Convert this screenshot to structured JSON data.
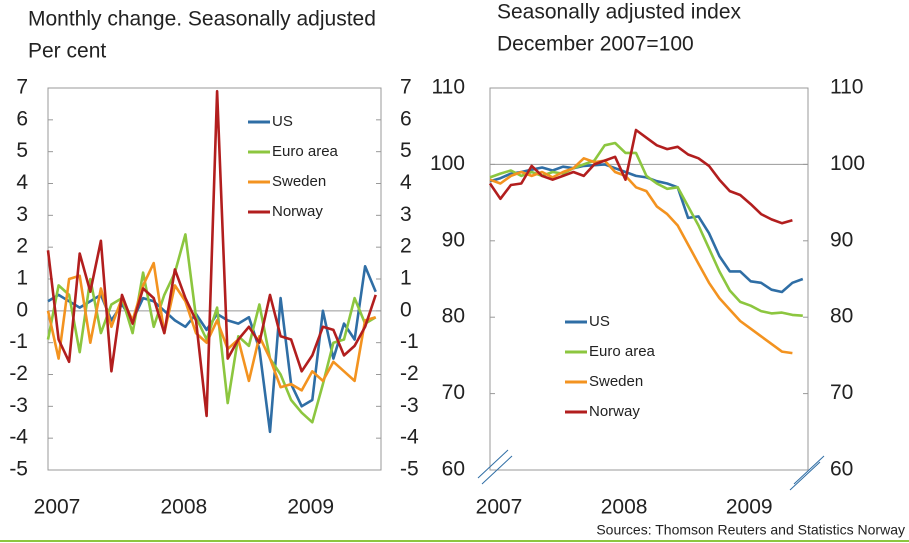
{
  "chart_data": [
    {
      "type": "line",
      "title": "Monthly change. Seasonally adjusted",
      "subtitle": "Per cent",
      "categories": [
        "2007",
        null,
        null,
        null,
        null,
        null,
        null,
        null,
        null,
        null,
        null,
        null,
        "2008",
        null,
        null,
        null,
        null,
        null,
        null,
        null,
        null,
        null,
        null,
        null,
        "2009",
        null,
        null,
        null,
        null,
        null,
        null,
        null
      ],
      "series": [
        {
          "name": "US",
          "color": "#2f6ea5",
          "values": [
            0.3,
            0.5,
            0.3,
            0.1,
            0.3,
            0.5,
            -0.3,
            0.2,
            -0.3,
            0.4,
            0.3,
            0.0,
            -0.3,
            -0.5,
            -0.1,
            -0.6,
            -0.1,
            -0.3,
            -0.4,
            -0.2,
            -1.2,
            -3.8,
            0.4,
            -2.3,
            -3.0,
            -2.8,
            0.0,
            -1.5,
            -0.4,
            -0.9,
            1.4,
            0.6
          ]
        },
        {
          "name": "Euro area",
          "color": "#8cc63f",
          "values": [
            -0.9,
            0.8,
            0.5,
            -1.3,
            1.0,
            -0.7,
            0.2,
            0.4,
            -0.7,
            1.2,
            -0.5,
            0.5,
            1.2,
            2.4,
            -0.2,
            -0.9,
            0.1,
            -2.9,
            -0.8,
            -1.1,
            0.2,
            -1.5,
            -2.0,
            -2.8,
            -3.2,
            -3.5,
            -2.3,
            -1.0,
            -0.9,
            0.4,
            -0.4,
            -0.2
          ]
        },
        {
          "name": "Sweden",
          "color": "#f39320",
          "values": [
            0.0,
            -1.5,
            1.0,
            1.1,
            -1.0,
            0.7,
            -0.5,
            0.4,
            -0.3,
            0.8,
            1.5,
            -0.7,
            0.8,
            0.3,
            -0.7,
            -1.0,
            -0.3,
            -1.2,
            -0.9,
            -2.2,
            -0.8,
            -1.5,
            -2.4,
            -2.3,
            -2.5,
            -1.9,
            -2.2,
            -1.6,
            -1.9,
            -2.2,
            -0.3,
            -0.2
          ]
        },
        {
          "name": "Norway",
          "color": "#b21e1e",
          "values": [
            1.9,
            -0.9,
            -1.6,
            1.8,
            0.6,
            2.2,
            -1.9,
            0.5,
            -0.4,
            0.7,
            0.4,
            -0.7,
            1.3,
            0.4,
            -0.3,
            -3.3,
            6.9,
            -1.5,
            -0.9,
            -0.5,
            -1.0,
            0.5,
            -0.8,
            -0.9,
            -1.9,
            -1.4,
            -0.5,
            -0.6,
            -1.4,
            -1.1,
            -0.5,
            0.5
          ]
        }
      ],
      "ylim": [
        -5,
        7
      ],
      "yticks": [
        -5,
        -4,
        -3,
        -2,
        -1,
        0,
        1,
        2,
        3,
        4,
        5,
        6,
        7
      ],
      "reference_line": 0,
      "legend": "upper right"
    },
    {
      "type": "line",
      "title": "Seasonally adjusted index",
      "subtitle": "December 2007=100",
      "categories": [
        "2007",
        null,
        null,
        null,
        null,
        null,
        null,
        null,
        null,
        null,
        null,
        null,
        "2008",
        null,
        null,
        null,
        null,
        null,
        null,
        null,
        null,
        null,
        null,
        null,
        "2009",
        null,
        null,
        null,
        null,
        null,
        null
      ],
      "series": [
        {
          "name": "US",
          "color": "#2f6ea5",
          "values": [
            97.8,
            98.2,
            98.8,
            99.0,
            99.3,
            99.6,
            99.2,
            99.7,
            99.5,
            99.8,
            99.9,
            100.0,
            99.5,
            99.0,
            98.5,
            98.3,
            97.8,
            97.5,
            97.0,
            93.0,
            93.2,
            91.0,
            88.0,
            86.0,
            86.0,
            84.7,
            84.5,
            83.6,
            83.3,
            84.5,
            85.0
          ]
        },
        {
          "name": "Euro area",
          "color": "#8cc63f",
          "values": [
            98.3,
            98.8,
            99.2,
            98.5,
            99.0,
            98.5,
            99.0,
            98.8,
            99.5,
            100.0,
            100.5,
            102.5,
            102.8,
            101.5,
            101.5,
            98.5,
            97.5,
            96.8,
            97.0,
            94.5,
            92.0,
            89.0,
            86.0,
            83.5,
            82.0,
            81.5,
            80.8,
            80.5,
            80.6,
            80.3,
            80.2
          ]
        },
        {
          "name": "Sweden",
          "color": "#f39320",
          "values": [
            98.0,
            97.5,
            98.5,
            99.0,
            98.5,
            99.0,
            98.3,
            99.0,
            99.5,
            100.8,
            100.3,
            100.5,
            99.0,
            98.5,
            97.0,
            96.5,
            94.5,
            93.5,
            92.0,
            89.5,
            87.0,
            84.5,
            82.5,
            81.0,
            79.5,
            78.5,
            77.5,
            76.5,
            75.5,
            75.3,
            null
          ]
        },
        {
          "name": "Norway",
          "color": "#b21e1e",
          "values": [
            97.5,
            95.5,
            97.3,
            97.5,
            99.8,
            98.5,
            98.0,
            98.5,
            99.0,
            98.5,
            100.0,
            100.5,
            101.0,
            98.0,
            104.5,
            103.5,
            102.5,
            102.0,
            102.3,
            101.3,
            100.8,
            99.8,
            98.0,
            96.5,
            96.0,
            94.8,
            93.5,
            92.8,
            92.3,
            92.7,
            null
          ]
        }
      ],
      "ylim": [
        60,
        110
      ],
      "yticks": [
        60,
        70,
        80,
        90,
        100,
        110
      ],
      "reference_line": 100,
      "legend": "lower left"
    }
  ],
  "source": "Sources: Thomson Reuters and Statistics Norway"
}
